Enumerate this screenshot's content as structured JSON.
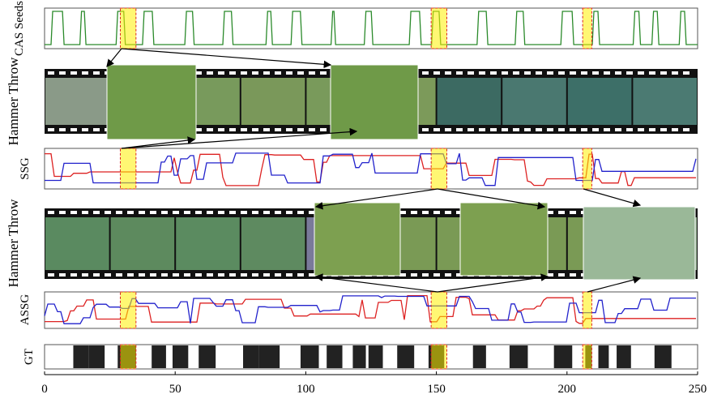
{
  "figure": {
    "rows": [
      {
        "label": "CAS Seeds"
      },
      {
        "label": "Hammer Throw"
      },
      {
        "label": "SSG"
      },
      {
        "label": "Hammer Throw"
      },
      {
        "label": "ASSG"
      },
      {
        "label": "GT"
      }
    ],
    "x_axis": {
      "xlim": [
        0,
        250
      ],
      "xticks": [
        0,
        50,
        100,
        150,
        200,
        250
      ]
    },
    "gt_segments": [
      [
        11,
        17
      ],
      [
        17,
        23
      ],
      [
        28,
        35
      ],
      [
        41,
        46.5
      ],
      [
        49,
        55
      ],
      [
        59,
        65.5
      ],
      [
        76,
        82
      ],
      [
        82,
        90
      ],
      [
        98,
        105
      ],
      [
        108,
        114
      ],
      [
        118,
        123
      ],
      [
        124,
        129.5
      ],
      [
        135,
        141.5
      ],
      [
        147,
        153
      ],
      [
        164,
        169
      ],
      [
        178,
        185
      ],
      [
        195,
        202
      ],
      [
        207,
        209.5
      ],
      [
        212,
        216
      ],
      [
        219,
        224.5
      ],
      [
        233.5,
        240
      ]
    ],
    "highlights": [
      [
        29,
        35
      ],
      [
        148,
        154
      ],
      [
        206,
        209.5
      ]
    ]
  }
}
